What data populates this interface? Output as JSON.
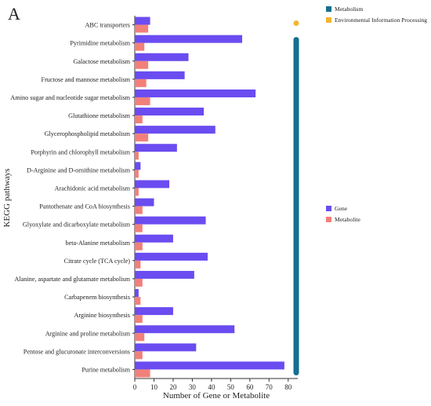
{
  "panel_label": "A",
  "colors": {
    "gene": "#6a4cf0",
    "metabolite": "#f2807a",
    "metabolism": "#156f8f",
    "environmental": "#f2b632",
    "axis": "#333333"
  },
  "category_legend": {
    "items": [
      {
        "label": "Metabolism",
        "color": "#156f8f"
      },
      {
        "label": "Environmental Information Processing",
        "color": "#f2b632"
      }
    ]
  },
  "bar_legend": {
    "items": [
      {
        "label": "Gene",
        "color": "#6a4cf0"
      },
      {
        "label": "Metabolite",
        "color": "#f2807a"
      }
    ]
  },
  "chart_data": {
    "type": "bar",
    "orientation": "horizontal",
    "xlabel": "Number of Gene or Metabolite",
    "ylabel": "KEGG pathways",
    "xlim": [
      0,
      85
    ],
    "xticks": [
      0,
      10,
      20,
      30,
      40,
      50,
      60,
      70,
      80
    ],
    "categories": [
      "ABC transporters",
      "Pyrimidine metabolism",
      "Galactose metabolism",
      "Fructose and mannose metabolism",
      "Amino sugar and nucleotide sugar metabolism",
      "Glutathione metabolism",
      "Glycerophospholipid metabolism",
      "Porphyrin and chlorophyll metabolism",
      "D-Arginine and D-ornithine metabolism",
      "Arachidonic acid metabolism",
      "Pantothenate and CoA biosynthesis",
      "Glyoxylate and dicarboxylate metabolism",
      "beta-Alanine metabolism",
      "Citrate cycle (TCA cycle)",
      "Alanine, aspartate and glutamate metabolism",
      "Carbapenem biosynthesis",
      "Arginine biosynthesis",
      "Arginine and proline metabolism",
      "Pentose and glucuronate interconversions",
      "Purine metabolism"
    ],
    "series": [
      {
        "name": "Gene",
        "color": "#6a4cf0",
        "values": [
          8,
          56,
          28,
          26,
          63,
          36,
          42,
          22,
          3,
          18,
          10,
          37,
          20,
          38,
          31,
          2,
          20,
          52,
          32,
          78
        ]
      },
      {
        "name": "Metabolite",
        "color": "#f2807a",
        "values": [
          7,
          5,
          7,
          6,
          8,
          4,
          7,
          2,
          2,
          2,
          4,
          4,
          4,
          3,
          4,
          3,
          4,
          5,
          4,
          8
        ]
      }
    ],
    "category_groups": [
      {
        "name": "Environmental Information Processing",
        "color": "#f2b632",
        "categories": [
          "ABC transporters"
        ]
      },
      {
        "name": "Metabolism",
        "color": "#156f8f",
        "from": "Pyrimidine metabolism",
        "to": "Purine metabolism"
      }
    ]
  }
}
